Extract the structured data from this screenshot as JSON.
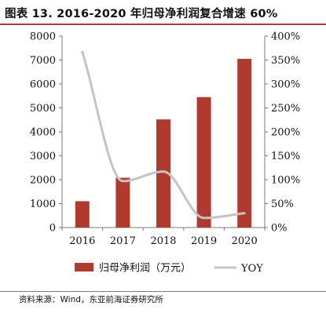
{
  "header": {
    "title": "图表 13. 2016-2020 年归母净利润复合增速 60%"
  },
  "footer": {
    "source": "资料来源：Wind，东亚前海证券研究所"
  },
  "colors": {
    "bar": "#b03a2e",
    "line": "#c4c4c4",
    "axis": "#7a7a7a"
  },
  "chart_data": {
    "type": "bar",
    "categories": [
      "2016",
      "2017",
      "2018",
      "2019",
      "2020"
    ],
    "series": [
      {
        "name": "归母净利润（万元）",
        "type": "bar",
        "axis": "left",
        "values": [
          1100,
          2080,
          4520,
          5450,
          7050
        ]
      },
      {
        "name": "YOY",
        "type": "line",
        "axis": "right",
        "unit": "%",
        "values": [
          367,
          97,
          117,
          20,
          30
        ]
      }
    ],
    "ylim": [
      0,
      8000
    ],
    "yticks": [
      "0",
      "1000",
      "2000",
      "3000",
      "4000",
      "5000",
      "6000",
      "7000",
      "8000"
    ],
    "y2lim": [
      0,
      400
    ],
    "y2ticks": [
      "0%",
      "50%",
      "100%",
      "150%",
      "200%",
      "250%",
      "300%",
      "350%",
      "400%"
    ],
    "legend": [
      "归母净利润（万元）",
      "YOY"
    ],
    "legend_position": "bottom",
    "grid": false
  }
}
